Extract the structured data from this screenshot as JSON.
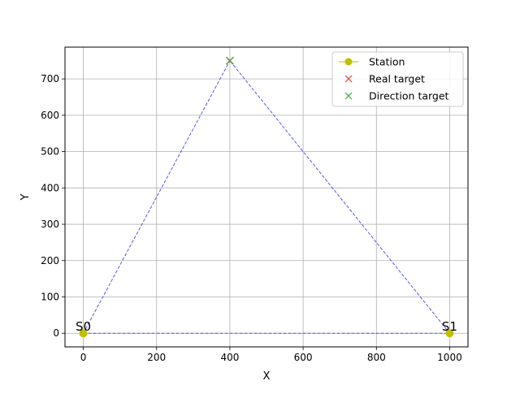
{
  "chart_data": {
    "type": "scatter",
    "title": "",
    "xlabel": "X",
    "ylabel": "Y",
    "xlim": [
      -50,
      1050
    ],
    "ylim": [
      -37.5,
      787.5
    ],
    "xticks": [
      0,
      200,
      400,
      600,
      800,
      1000
    ],
    "yticks": [
      0,
      100,
      200,
      300,
      400,
      500,
      600,
      700
    ],
    "grid": true,
    "legend_position": "top-right",
    "series": [
      {
        "name": "Station",
        "kind": "line-marker",
        "color": "#bfbf00",
        "points": [
          {
            "x": 0,
            "y": 0,
            "label": "S0"
          },
          {
            "x": 1000,
            "y": 0,
            "label": "S1"
          }
        ]
      },
      {
        "name": "Real target",
        "kind": "x-marker",
        "color": "#e8474b",
        "points": [
          {
            "x": 400,
            "y": 750
          }
        ]
      },
      {
        "name": "Direction target",
        "kind": "x-marker",
        "color": "#4fa84f",
        "points": [
          {
            "x": 400,
            "y": 750
          }
        ]
      }
    ],
    "guide_lines": {
      "color": "#3b3bf0",
      "style": "dashed",
      "segments": [
        [
          [
            0,
            0
          ],
          [
            400,
            750
          ]
        ],
        [
          [
            1000,
            0
          ],
          [
            400,
            750
          ]
        ],
        [
          [
            0,
            0
          ],
          [
            1000,
            0
          ]
        ]
      ]
    }
  }
}
